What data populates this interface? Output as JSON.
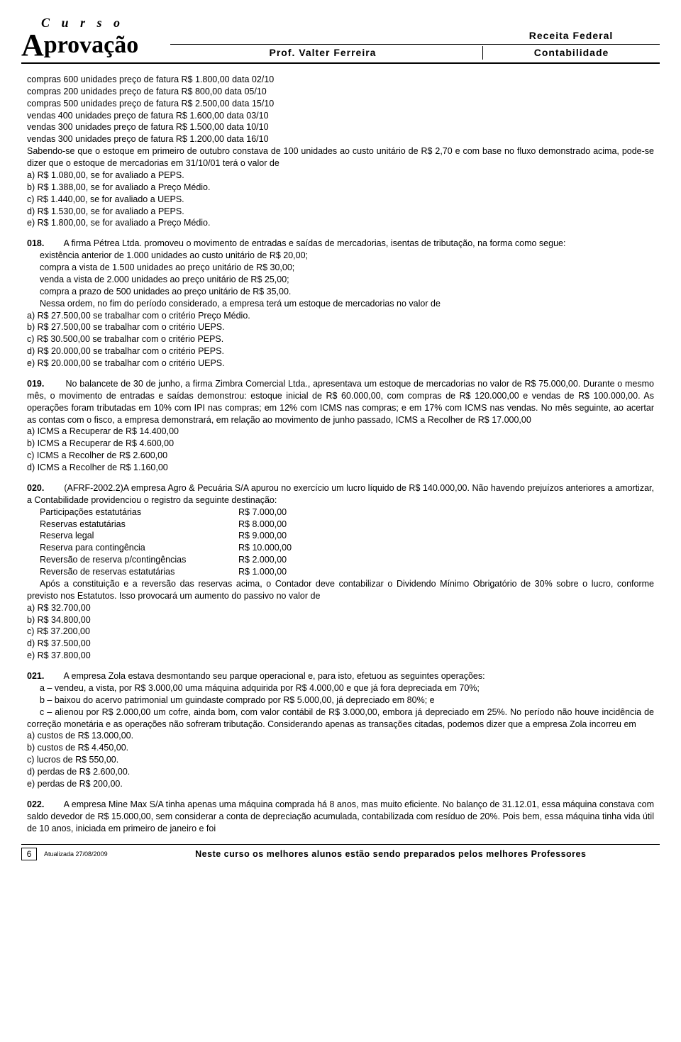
{
  "header": {
    "logo_top": "C u r s o",
    "logo_main": "Aprovação",
    "receita": "Receita Federal",
    "prof": "Prof. Valter Ferreira",
    "subject": "Contabilidade"
  },
  "q017_intro": [
    "compras 600 unidades preço de fatura R$ 1.800,00 data 02/10",
    "compras 200 unidades preço de fatura R$ 800,00 data 05/10",
    "compras 500 unidades preço de fatura R$ 2.500,00 data 15/10",
    "vendas 400 unidades preço de fatura R$ 1.600,00 data 03/10",
    "vendas 300 unidades preço de fatura R$ 1.500,00 data 10/10",
    "vendas 300 unidades preço de fatura R$ 1.200,00 data 16/10",
    "Sabendo-se que o estoque em primeiro de outubro constava de 100 unidades ao custo unitário de R$ 2,70 e com base no fluxo demonstrado acima, pode-se dizer que o estoque de mercadorias em 31/10/01 terá o valor de"
  ],
  "q017_opts": [
    "a) R$ 1.080,00, se for avaliado a PEPS.",
    "b) R$ 1.388,00, se for avaliado a Preço Médio.",
    "c) R$ 1.440,00, se for avaliado a UEPS.",
    "d) R$ 1.530,00, se for avaliado a PEPS.",
    "e) R$ 1.800,00, se for avaliado a Preço Médio."
  ],
  "q018_num": "018.",
  "q018_lead": "A firma Pétrea Ltda. promoveu o movimento de entradas e saídas de mercadorias, isentas de tributação, na forma como segue:",
  "q018_items": [
    "existência anterior de 1.000 unidades ao custo unitário de R$ 20,00;",
    "compra a vista de 1.500 unidades ao preço unitário de R$ 30,00;",
    "venda a vista de 2.000 unidades ao preço unitário de R$ 25,00;",
    "compra a prazo de 500 unidades ao preço unitário de R$ 35,00."
  ],
  "q018_mid": "Nessa ordem, no fim do período considerado, a empresa terá um estoque de mercadorias no valor de",
  "q018_opts": [
    "a) R$ 27.500,00 se trabalhar com o critério Preço Médio.",
    "b) R$ 27.500,00 se trabalhar com o critério UEPS.",
    "c) R$ 30.500,00 se trabalhar com o critério PEPS.",
    "d) R$ 20.000,00 se trabalhar com o critério PEPS.",
    "e) R$ 20.000,00 se trabalhar com o critério UEPS."
  ],
  "q019_num": "019.",
  "q019_text": "No balancete de 30 de junho, a firma Zimbra Comercial Ltda., apresentava um estoque de mercadorias no valor de R$ 75.000,00. Durante o mesmo mês, o movimento de entradas e saídas demonstrou: estoque inicial de R$ 60.000,00, com compras de R$ 120.000,00 e vendas de R$ 100.000,00. As operações foram tributadas em 10% com IPI nas compras; em 12% com ICMS nas compras; e em 17% com ICMS nas vendas. No mês seguinte, ao acertar as contas com o fisco, a empresa demonstrará, em relação ao movimento de junho passado, ICMS a Recolher de R$ 17.000,00",
  "q019_opts": [
    "a) ICMS a Recuperar de R$ 14.400,00",
    "b) ICMS a Recuperar de R$ 4.600,00",
    "c) ICMS a Recolher de R$ 2.600,00",
    "d) ICMS a Recolher de R$ 1.160,00"
  ],
  "q020_num": "020.",
  "q020_lead": "(AFRF-2002.2)A empresa Agro & Pecuária S/A apurou no exercício um lucro líquido de R$ 140.000,00. Não havendo prejuízos anteriores a amortizar, a Contabilidade providenciou o registro da seguinte destinação:",
  "q020_rows": [
    [
      "Participações estatutárias",
      "R$ 7.000,00"
    ],
    [
      "Reservas estatutárias",
      "R$ 8.000,00"
    ],
    [
      "Reserva legal",
      "R$ 9.000,00"
    ],
    [
      "Reserva para contingência",
      "R$ 10.000,00"
    ],
    [
      "Reversão de reserva p/contingências",
      "R$ 2.000,00"
    ],
    [
      "Reversão de reservas estatutárias",
      "R$ 1.000,00"
    ]
  ],
  "q020_mid": "Após a constituição e a reversão das reservas acima, o Contador deve contabilizar o Dividendo Mínimo Obrigatório de 30% sobre o lucro, conforme previsto nos Estatutos. Isso provocará um aumento do passivo no valor de",
  "q020_opts": [
    "a) R$ 32.700,00",
    "b) R$ 34.800,00",
    "c) R$ 37.200,00",
    "d) R$ 37.500,00",
    "e) R$ 37.800,00"
  ],
  "q021_num": "021.",
  "q021_lead": "A empresa Zola estava desmontando seu parque operacional e, para isto, efetuou as seguintes operações:",
  "q021_items": [
    "a – vendeu, a vista, por R$ 3.000,00 uma máquina adquirida por R$ 4.000,00 e que já fora depreciada em 70%;",
    "b – baixou do acervo patrimonial um guindaste comprado por R$ 5.000,00, já depreciado em 80%; e",
    "c – alienou por R$ 2.000,00 um cofre, ainda bom, com valor contábil de R$ 3.000,00, embora já depreciado em 25%. No período não houve incidência de correção monetária e as operações não sofreram tributação. Considerando apenas as transações citadas, podemos dizer que a empresa Zola incorreu em"
  ],
  "q021_opts": [
    "a) custos de R$ 13.000,00.",
    "b) custos de R$ 4.450,00.",
    "c) lucros de R$ 550,00.",
    "d) perdas de R$ 2.600,00.",
    "e) perdas de R$ 200,00."
  ],
  "q022_num": "022.",
  "q022_text": "A empresa Mine Max S/A tinha apenas uma máquina comprada há 8 anos, mas muito eficiente. No balanço de 31.12.01, essa máquina constava com saldo devedor de R$ 15.000,00, sem considerar a conta de depreciação acumulada, contabilizada com resíduo de 20%. Pois bem, essa máquina tinha vida útil de 10 anos, iniciada em primeiro de janeiro e foi",
  "footer": {
    "page": "6",
    "date": "Atualizada 27/08/2009",
    "text": "Neste curso os melhores alunos estão sendo preparados pelos melhores Professores"
  }
}
